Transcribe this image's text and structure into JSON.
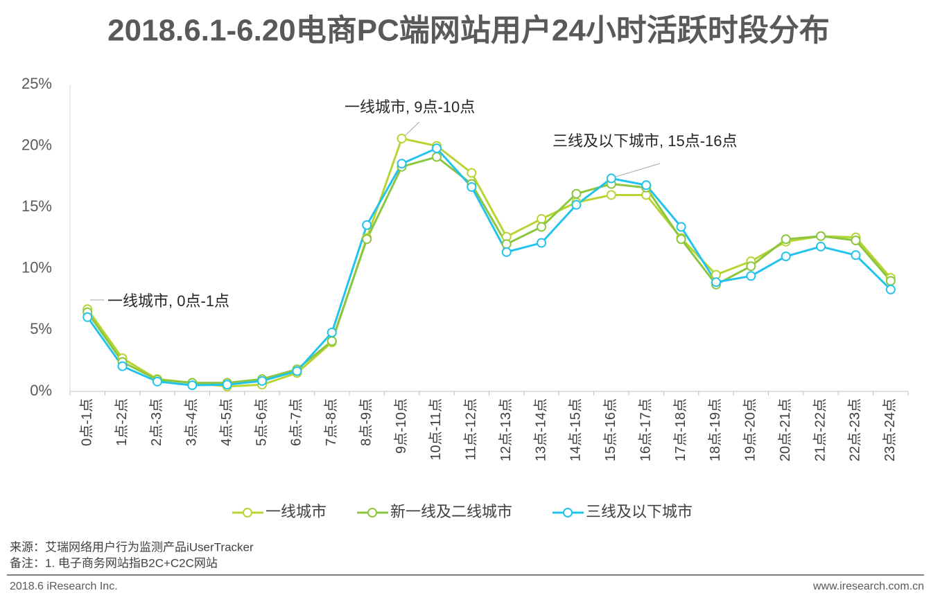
{
  "chart_data": {
    "type": "line",
    "title": "2018.6.1-6.20电商PC端网站用户24小时活跃时段分布",
    "categories": [
      "0点-1点",
      "1点-2点",
      "2点-3点",
      "3点-4点",
      "4点-5点",
      "5点-6点",
      "6点-7点",
      "7点-8点",
      "8点-9点",
      "9点-10点",
      "10点-11点",
      "11点-12点",
      "12点-13点",
      "13点-14点",
      "14点-15点",
      "15点-16点",
      "16点-17点",
      "17点-18点",
      "18点-19点",
      "19点-20点",
      "20点-21点",
      "21点-22点",
      "22点-23点",
      "23点-24点"
    ],
    "series": [
      {
        "name": "一线城市",
        "color": "#b7d433",
        "values": [
          6.7,
          2.7,
          1.0,
          0.7,
          0.4,
          0.55,
          1.5,
          4.0,
          12.5,
          20.6,
          20.0,
          17.8,
          12.6,
          14.05,
          15.4,
          16.0,
          16.0,
          12.5,
          9.5,
          10.6,
          12.2,
          12.65,
          12.55,
          9.25
        ]
      },
      {
        "name": "新一线及二线城市",
        "color": "#8cc63f",
        "values": [
          6.45,
          2.4,
          0.95,
          0.7,
          0.7,
          1.0,
          1.8,
          4.1,
          12.4,
          18.3,
          19.1,
          16.9,
          12.0,
          13.4,
          16.1,
          16.9,
          16.6,
          12.4,
          8.7,
          10.2,
          12.4,
          12.65,
          12.3,
          9.0
        ]
      },
      {
        "name": "三线及以下城市",
        "color": "#22c3ec",
        "values": [
          6.05,
          2.05,
          0.8,
          0.5,
          0.55,
          0.85,
          1.65,
          4.8,
          13.55,
          18.55,
          19.8,
          16.65,
          11.35,
          12.1,
          15.2,
          17.35,
          16.8,
          13.4,
          8.9,
          9.4,
          11.0,
          11.8,
          11.1,
          8.3
        ]
      }
    ],
    "ylim": [
      0,
      25
    ],
    "yticks": [
      {
        "value": 0,
        "label": "0%"
      },
      {
        "value": 5,
        "label": "5%"
      },
      {
        "value": 10,
        "label": "10%"
      },
      {
        "value": 15,
        "label": "15%"
      },
      {
        "value": 20,
        "label": "20%"
      },
      {
        "value": 25,
        "label": "25%"
      }
    ],
    "grid": false,
    "legend": "bottom",
    "annotations": [
      {
        "text": "一线城市, 0点-1点"
      },
      {
        "text": "一线城市, 9点-10点"
      },
      {
        "text": "三线及以下城市, 15点-16点"
      }
    ],
    "source": "来源：艾瑞网络用户行为监测产品iUserTracker",
    "note": "备注：1. 电子商务网站指B2C+C2C网站",
    "copyright": "2018.6 iResearch Inc.",
    "website": "www.iresearch.com.cn"
  }
}
